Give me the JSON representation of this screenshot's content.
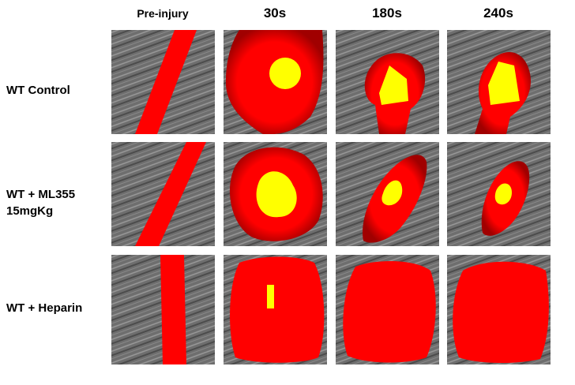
{
  "columns": [
    "Pre-injury",
    "30s",
    "180s",
    "240s"
  ],
  "rows": [
    {
      "label": [
        "WT Control"
      ]
    },
    {
      "label": [
        "WT + ML355",
        "15mgKg"
      ]
    },
    {
      "label": [
        "WT + Heparin"
      ]
    }
  ]
}
